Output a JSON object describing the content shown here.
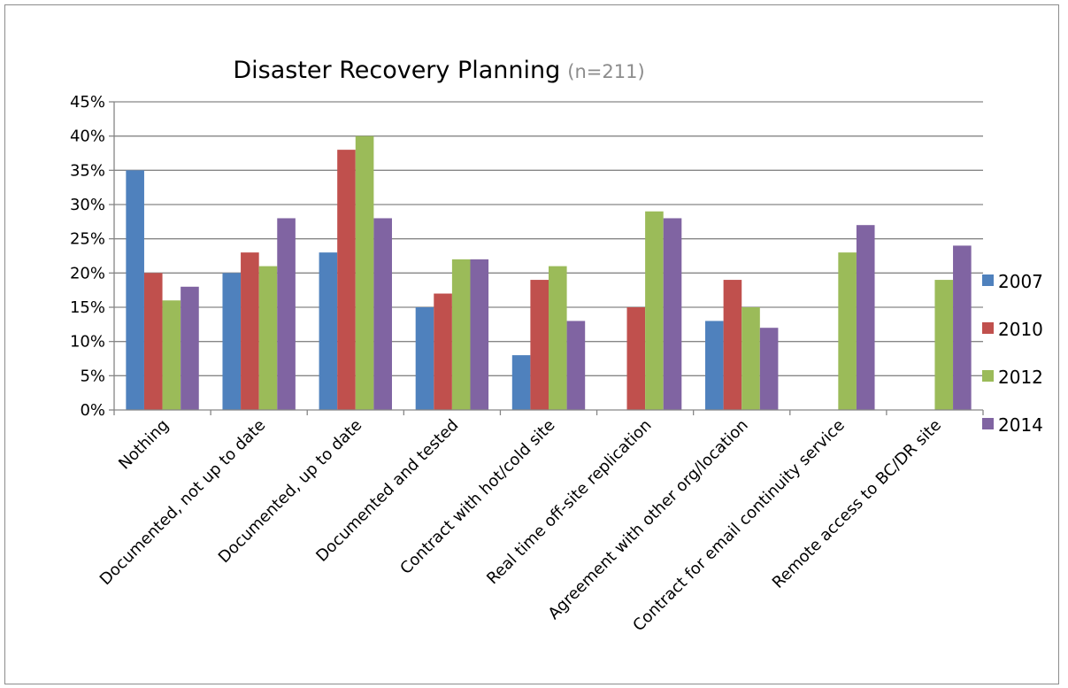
{
  "chart_data": {
    "type": "bar",
    "title": "Disaster Recovery Planning",
    "subtitle": "(n=211)",
    "categories": [
      "Nothing",
      "Documented, not up to date",
      "Documented, up to date",
      "Documented and tested",
      "Contract with hot/cold site",
      "Real time off-site replication",
      "Agreement with other org/location",
      "Contract for email continuity service",
      "Remote access to BC/DR site"
    ],
    "series": [
      {
        "name": "2007",
        "color": "#4F81BD",
        "values": [
          35,
          20,
          23,
          15,
          8,
          null,
          13,
          null,
          null
        ]
      },
      {
        "name": "2010",
        "color": "#C0504D",
        "values": [
          20,
          23,
          38,
          17,
          19,
          15,
          19,
          null,
          null
        ]
      },
      {
        "name": "2012",
        "color": "#9BBB59",
        "values": [
          16,
          21,
          40,
          22,
          21,
          29,
          15,
          23,
          19
        ]
      },
      {
        "name": "2014",
        "color": "#8064A2",
        "values": [
          18,
          28,
          28,
          22,
          13,
          28,
          12,
          27,
          24
        ]
      }
    ],
    "ylim": [
      0,
      45
    ],
    "yticks": [
      0,
      5,
      10,
      15,
      20,
      25,
      30,
      35,
      40,
      45
    ],
    "ytick_suffix": "%",
    "grid": true,
    "legend_position": "right",
    "xlabel": "",
    "ylabel": ""
  }
}
